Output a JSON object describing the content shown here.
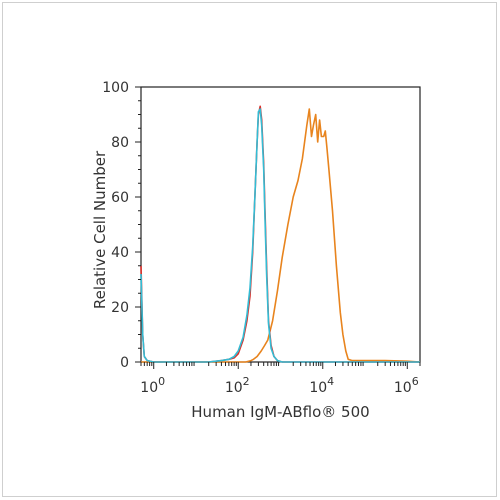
{
  "chart_data": {
    "type": "line",
    "title": "",
    "xlabel": "Human IgM-ABflo® 500",
    "ylabel": "Relative Cell Number",
    "x_scale": "log",
    "xlim": [
      0.5,
      2000000
    ],
    "ylim": [
      0,
      100
    ],
    "y_ticks": [
      0,
      20,
      40,
      60,
      80,
      100
    ],
    "x_ticks": [
      {
        "value": 1,
        "base": "10",
        "exp": "0"
      },
      {
        "value": 100,
        "base": "10",
        "exp": "2"
      },
      {
        "value": 10000,
        "base": "10",
        "exp": "4"
      },
      {
        "value": 1000000,
        "base": "10",
        "exp": "6"
      }
    ],
    "grid": false,
    "legend": "none",
    "series": [
      {
        "color": "#e8841e",
        "x": [
          0.5,
          100,
          150,
          200,
          230,
          280,
          350,
          420,
          500,
          650,
          850,
          1100,
          1500,
          2000,
          2600,
          3300,
          4200,
          4800,
          5400,
          6000,
          6800,
          7600,
          8400,
          9300,
          10500,
          11500,
          12500,
          14000,
          17000,
          21000,
          26000,
          30000,
          35000,
          40000,
          50000,
          70000,
          100000,
          300000,
          1000000,
          2000000
        ],
        "y": [
          0,
          0,
          0,
          0.5,
          1,
          2,
          4,
          6,
          8,
          15,
          26,
          38,
          50,
          60,
          66,
          74,
          86,
          92,
          82,
          86,
          90,
          80,
          88,
          82,
          82,
          84,
          78,
          70,
          55,
          35,
          18,
          10,
          4,
          1,
          0.5,
          0.5,
          0.5,
          0.5,
          0.3,
          0
        ]
      },
      {
        "color": "#d9302a",
        "x": [
          0.5,
          0.55,
          0.6,
          0.7,
          1,
          10,
          20,
          40,
          60,
          80,
          100,
          130,
          160,
          190,
          220,
          250,
          280,
          300,
          330,
          360,
          400,
          430,
          470,
          520,
          600,
          700,
          850,
          1100,
          1500,
          5000,
          100000,
          2000000
        ],
        "y": [
          35,
          10,
          2,
          0.5,
          0,
          0,
          0,
          0.5,
          1,
          1.5,
          3,
          8,
          15,
          24,
          40,
          62,
          80,
          90,
          93,
          88,
          72,
          55,
          35,
          15,
          6,
          2,
          0.5,
          0,
          0,
          0,
          0,
          0
        ]
      },
      {
        "color": "#33bcd4",
        "x": [
          0.5,
          0.55,
          0.6,
          0.7,
          1,
          10,
          20,
          40,
          60,
          80,
          100,
          130,
          160,
          190,
          220,
          250,
          280,
          300,
          330,
          360,
          400,
          430,
          470,
          520,
          600,
          700,
          850,
          1100,
          1500,
          5000,
          100000,
          2000000
        ],
        "y": [
          32,
          10,
          2,
          0.5,
          0,
          0,
          0,
          0.5,
          1,
          2,
          4,
          9,
          17,
          27,
          42,
          62,
          80,
          91,
          92,
          86,
          70,
          52,
          32,
          14,
          5,
          2,
          0.5,
          0,
          0,
          0,
          0,
          0
        ]
      }
    ]
  }
}
